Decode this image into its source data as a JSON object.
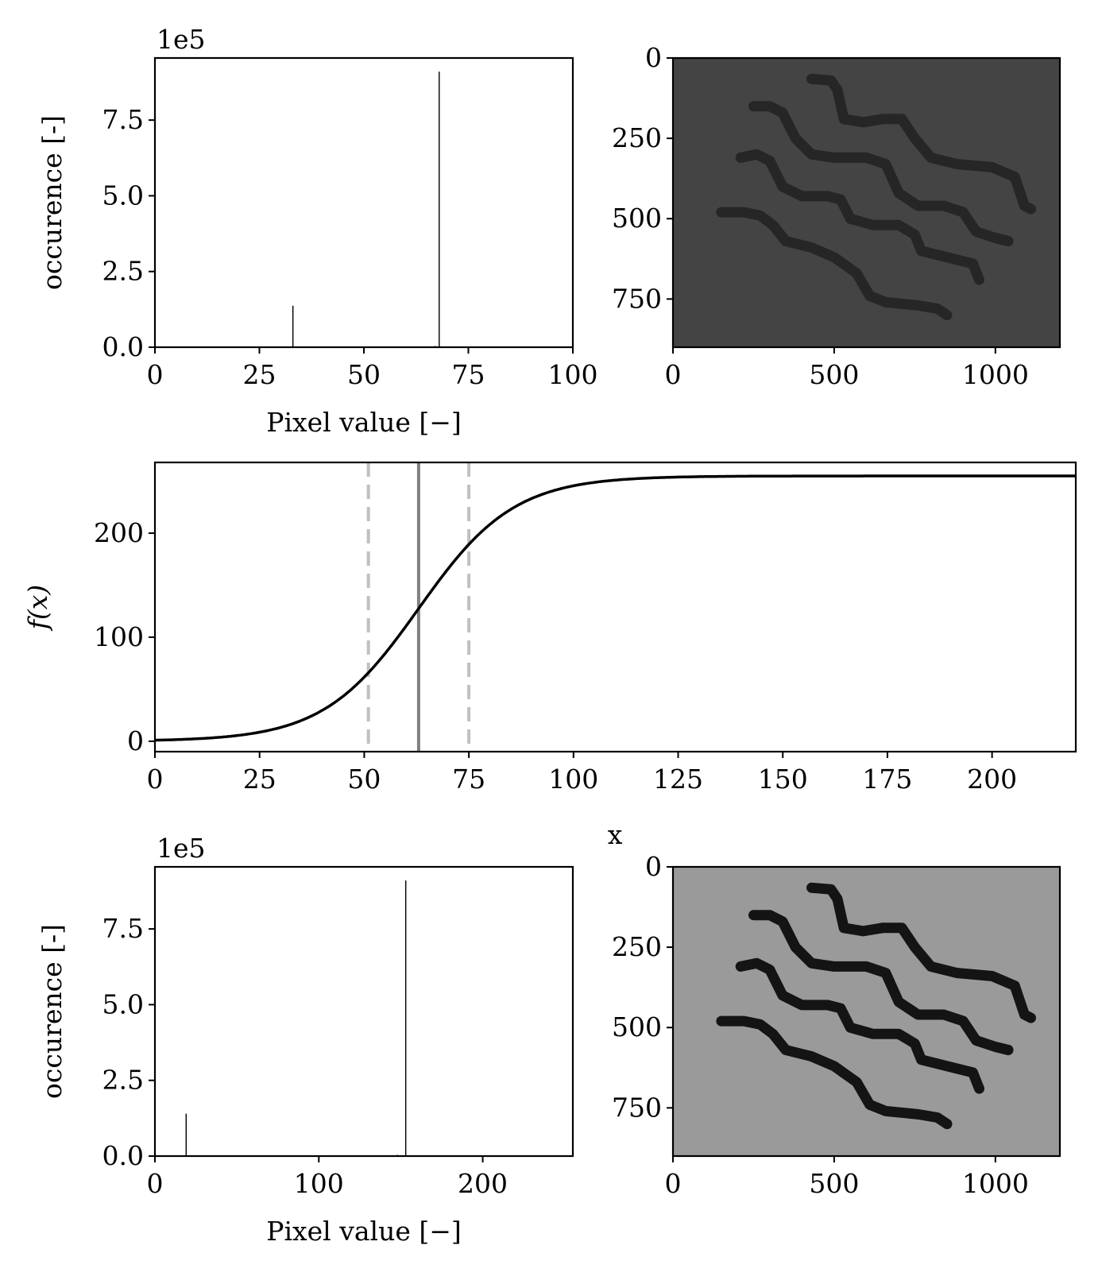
{
  "chart_data": [
    {
      "id": "hist-top",
      "type": "bar",
      "title": "",
      "xlabel": "Pixel value [−]",
      "ylabel": "occurence [-]",
      "y_multiplier": "1e5",
      "xlim": [
        0,
        100
      ],
      "ylim": [
        0,
        9.55
      ],
      "xticks": [
        0,
        25,
        50,
        75,
        100
      ],
      "xtick_labels": [
        "0",
        "25",
        "50",
        "75",
        "100"
      ],
      "yticks": [
        0,
        2.5,
        5.0,
        7.5
      ],
      "ytick_labels": [
        "0.0",
        "2.5",
        "5.0",
        "7.5"
      ],
      "bars": [
        {
          "x": 33,
          "value": 1.37
        },
        {
          "x": 67,
          "value": 0.04
        },
        {
          "x": 68,
          "value": 9.1
        }
      ]
    },
    {
      "id": "image-top",
      "type": "image",
      "background": "#444444",
      "stroke_color": "#262626",
      "xlim": [
        0,
        1200
      ],
      "ylim": [
        900,
        0
      ],
      "xticks": [
        0,
        500,
        1000
      ],
      "xtick_labels": [
        "0",
        "500",
        "1000"
      ],
      "yticks": [
        0,
        250,
        500,
        750
      ],
      "ytick_labels": [
        "0",
        "250",
        "500",
        "750"
      ]
    },
    {
      "id": "sigmoid",
      "type": "line",
      "xlabel": "x",
      "ylabel": "f(x)",
      "xlim": [
        0,
        220
      ],
      "ylim": [
        -10,
        268
      ],
      "xticks": [
        0,
        25,
        50,
        75,
        100,
        125,
        150,
        175,
        200
      ],
      "xtick_labels": [
        "0",
        "25",
        "50",
        "75",
        "100",
        "125",
        "150",
        "175",
        "200"
      ],
      "yticks": [
        0,
        100,
        200
      ],
      "ytick_labels": [
        "0",
        "100",
        "200"
      ],
      "series": [
        {
          "name": "f(x)",
          "function": "logistic",
          "L": 255,
          "x0": 63,
          "k": 0.088,
          "color": "#000000"
        }
      ],
      "vlines": [
        {
          "x": 63,
          "style": "solid",
          "color": "#808080"
        },
        {
          "x": 51,
          "style": "dashed",
          "color": "#c0c0c0"
        },
        {
          "x": 75,
          "style": "dashed",
          "color": "#c0c0c0"
        }
      ]
    },
    {
      "id": "hist-bottom",
      "type": "bar",
      "title": "",
      "xlabel": "Pixel value [−]",
      "ylabel": "occurence [-]",
      "y_multiplier": "1e5",
      "xlim": [
        0,
        255
      ],
      "ylim": [
        0,
        9.55
      ],
      "xticks": [
        0,
        100,
        200
      ],
      "xtick_labels": [
        "0",
        "100",
        "200"
      ],
      "yticks": [
        0,
        2.5,
        5.0,
        7.5
      ],
      "ytick_labels": [
        "0.0",
        "2.5",
        "5.0",
        "7.5"
      ],
      "bars": [
        {
          "x": 19,
          "value": 1.4
        },
        {
          "x": 148,
          "value": 0.04
        },
        {
          "x": 153,
          "value": 9.1
        }
      ]
    },
    {
      "id": "image-bottom",
      "type": "image",
      "background": "#9a9a9a",
      "stroke_color": "#141414",
      "xlim": [
        0,
        1200
      ],
      "ylim": [
        900,
        0
      ],
      "xticks": [
        0,
        500,
        1000
      ],
      "xtick_labels": [
        "0",
        "500",
        "1000"
      ],
      "yticks": [
        0,
        250,
        500,
        750
      ],
      "ytick_labels": [
        "0",
        "250",
        "500",
        "750"
      ]
    }
  ]
}
